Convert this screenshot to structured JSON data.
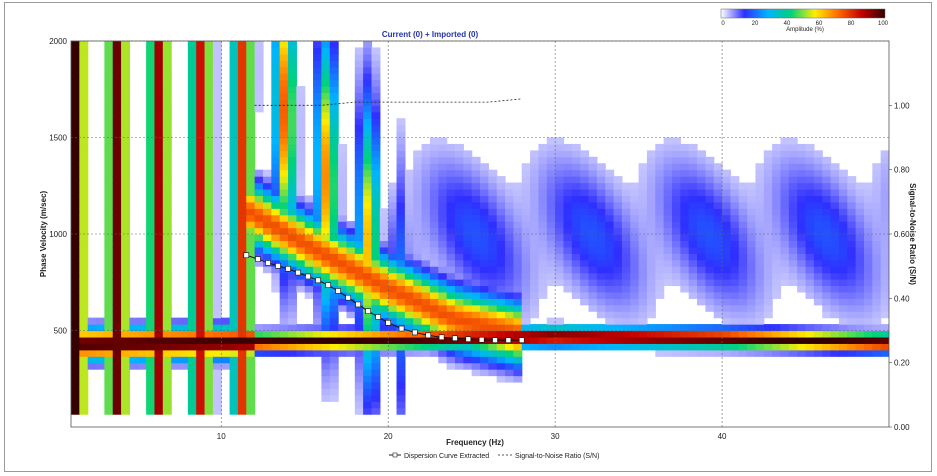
{
  "chart_data": {
    "type": "heatmap",
    "title": "Current (0) + Imported (0)",
    "xlabel": "Frequency (Hz)",
    "ylabel": "Phase Velocity (m/sec)",
    "y2label": "Signal-to-Noise Ratio (S/N)",
    "xlim": [
      1,
      50
    ],
    "ylim": [
      0,
      2000
    ],
    "y2lim": [
      0,
      1.2
    ],
    "x_ticks": [
      10,
      20,
      30,
      40
    ],
    "y_ticks": [
      500,
      1000,
      1500,
      2000
    ],
    "y2_ticks": [
      "0.00",
      "0.20",
      "0.40",
      "0.60",
      "0.80",
      "1.00"
    ],
    "colorbar": {
      "label": "Amplitude (%)",
      "ticks": [
        0,
        20,
        40,
        60,
        80,
        100
      ],
      "colors": [
        "#ffffff",
        "#2f2fff",
        "#00b4ff",
        "#00d27a",
        "#ffee00",
        "#ff6a00",
        "#c40000",
        "#300000"
      ]
    },
    "dispersion_curve": {
      "name": "Dispersion Curve Extracted",
      "x": [
        11.5,
        12.2,
        12.8,
        13.4,
        14.0,
        14.6,
        15.2,
        15.8,
        16.4,
        17.0,
        17.6,
        18.2,
        18.8,
        19.4,
        20.0,
        20.8,
        21.6,
        22.4,
        23.2,
        24.0,
        24.8,
        25.6,
        26.4,
        27.2,
        28.0
      ],
      "y": [
        890,
        870,
        850,
        835,
        820,
        800,
        780,
        760,
        735,
        705,
        670,
        635,
        600,
        570,
        540,
        510,
        490,
        475,
        465,
        460,
        455,
        452,
        450,
        450,
        450
      ]
    },
    "snr_curve": {
      "name": "Signal-to-Noise Ratio (S/N)",
      "x": [
        12,
        14,
        16,
        18,
        20,
        22,
        24,
        26,
        28
      ],
      "y": [
        1.0,
        1.0,
        1.0,
        1.01,
        1.01,
        1.01,
        1.01,
        1.01,
        1.02
      ]
    },
    "ridges": [
      {
        "x": [
          1,
          10,
          20,
          30,
          40,
          50
        ],
        "y": [
          430,
          440,
          455,
          470,
          460,
          440
        ],
        "amp": 100
      },
      {
        "x": [
          11,
          15,
          20,
          24,
          28
        ],
        "y": [
          1150,
          950,
          720,
          560,
          480
        ],
        "amp": 75
      }
    ],
    "legend": [
      "Dispersion Curve Extracted",
      "Signal-to-Noise Ratio (S/N)"
    ],
    "grid": true,
    "legend_position": "bottom"
  }
}
